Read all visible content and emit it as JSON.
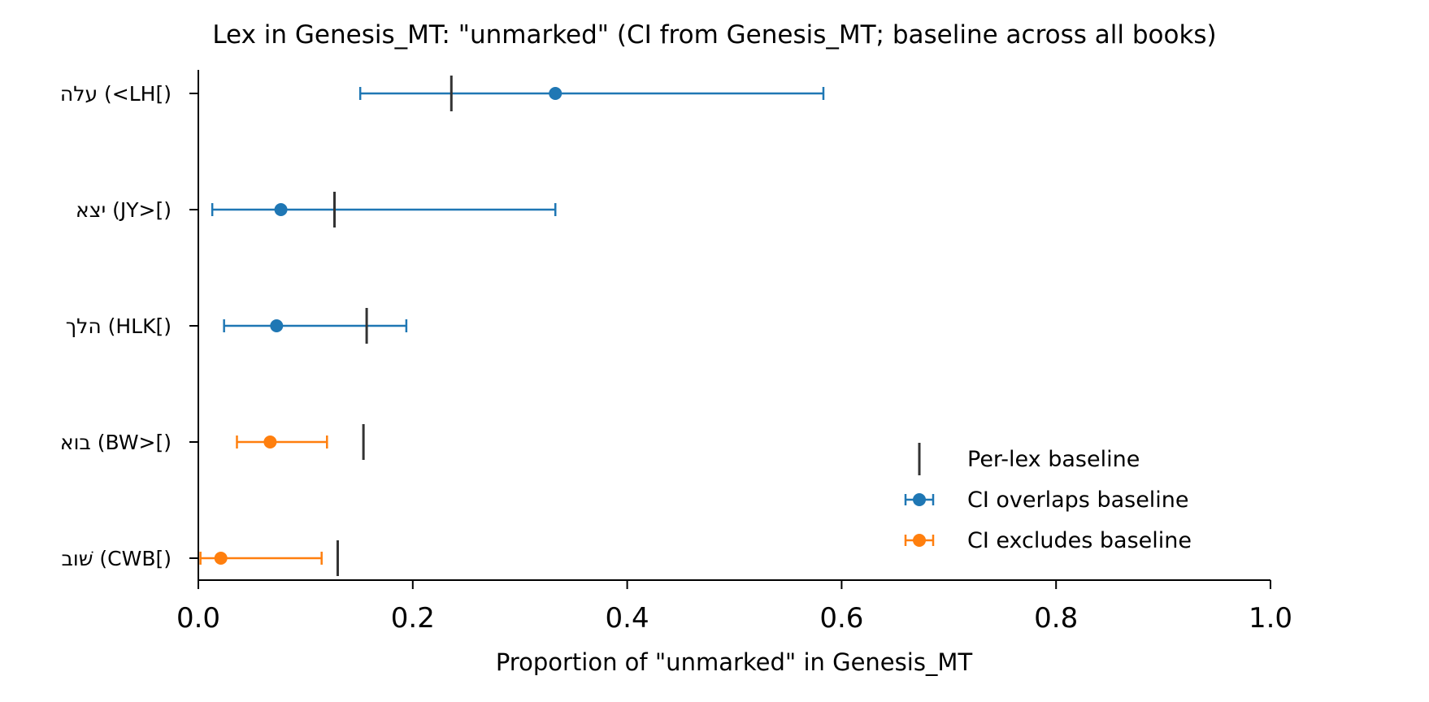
{
  "chart_data": {
    "type": "scatter",
    "title": "Lex in Genesis_MT: \"unmarked\" (CI from Genesis_MT; baseline across all books)",
    "xlabel": "Proportion of \"unmarked\" in Genesis_MT",
    "ylabel": "",
    "xlim": [
      0.0,
      1.0
    ],
    "xticks": [
      "0.0",
      "0.2",
      "0.4",
      "0.6",
      "0.8",
      "1.0"
    ],
    "grid": false,
    "legend_position": "lower-right",
    "categories": [
      "עלה (<LH[)",
      "יצא (JY>[)",
      "הלך (HLK[)",
      "בוא (BW>[)",
      "שׁוב (CWB[)"
    ],
    "points": [
      {
        "label": "עלה (<LH[)",
        "value": 0.333,
        "ci_low": 0.151,
        "ci_high": 0.583,
        "baseline": 0.236,
        "group": "overlaps"
      },
      {
        "label": "יצא (JY>[)",
        "value": 0.077,
        "ci_low": 0.013,
        "ci_high": 0.333,
        "baseline": 0.127,
        "group": "overlaps"
      },
      {
        "label": "הלך (HLK[)",
        "value": 0.073,
        "ci_low": 0.024,
        "ci_high": 0.194,
        "baseline": 0.157,
        "group": "overlaps"
      },
      {
        "label": "בוא (BW>[)",
        "value": 0.067,
        "ci_low": 0.036,
        "ci_high": 0.12,
        "baseline": 0.154,
        "group": "excludes"
      },
      {
        "label": "שׁוב (CWB[)",
        "value": 0.021,
        "ci_low": 0.002,
        "ci_high": 0.115,
        "baseline": 0.13,
        "group": "excludes"
      }
    ],
    "legend": [
      {
        "key": "baseline",
        "label": "Per-lex baseline",
        "color": "#333333"
      },
      {
        "key": "overlaps",
        "label": "CI overlaps baseline",
        "color": "#1f77b4"
      },
      {
        "key": "excludes",
        "label": "CI excludes baseline",
        "color": "#ff7f0e"
      }
    ]
  }
}
